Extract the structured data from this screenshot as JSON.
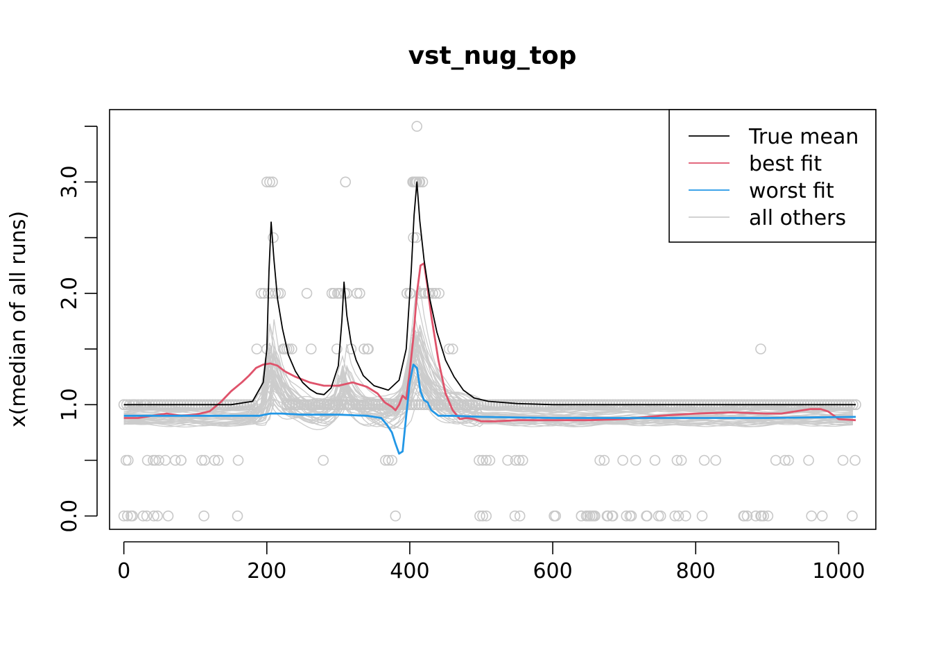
{
  "chart_data": {
    "type": "line",
    "title": "vst_nug_top",
    "xlabel": "",
    "ylabel": "x(median of all runs)",
    "xlim": [
      -20,
      1052
    ],
    "ylim": [
      -0.12,
      3.65
    ],
    "x_ticks": [
      0,
      200,
      400,
      600,
      800,
      1000
    ],
    "x_tick_labels": [
      "0",
      "200",
      "400",
      "600",
      "800",
      "1000"
    ],
    "y_ticks": [
      0,
      0.5,
      1,
      1.5,
      2,
      2.5,
      3,
      3.5
    ],
    "y_tick_labels": [
      "0.0",
      "",
      "1.0",
      "",
      "2.0",
      "",
      "3.0",
      ""
    ],
    "legend": {
      "position": "top-right",
      "entries": [
        {
          "label": "True mean",
          "color": "#000000"
        },
        {
          "label": "best fit",
          "color": "#DF536B"
        },
        {
          "label": "worst fit",
          "color": "#2297E6"
        },
        {
          "label": "all others",
          "color": "#CCCCCC"
        }
      ]
    },
    "colors": {
      "true_mean": "#000000",
      "best_fit": "#DF536B",
      "worst_fit": "#2297E6",
      "others": "#CCCCCC",
      "points": "#C8C8C8"
    },
    "series": [
      {
        "name": "True mean",
        "x": [
          0,
          150,
          180,
          195,
          200,
          203,
          206,
          210,
          215,
          222,
          230,
          240,
          250,
          260,
          270,
          280,
          290,
          300,
          305,
          308,
          312,
          318,
          325,
          335,
          350,
          370,
          385,
          395,
          402,
          406,
          410,
          414,
          420,
          428,
          438,
          450,
          462,
          475,
          490,
          510,
          550,
          600,
          700,
          800,
          1024
        ],
        "y": [
          1.0,
          1.0,
          1.03,
          1.2,
          1.5,
          2.2,
          2.64,
          2.3,
          1.95,
          1.68,
          1.45,
          1.3,
          1.2,
          1.14,
          1.1,
          1.09,
          1.15,
          1.35,
          1.75,
          2.1,
          1.8,
          1.55,
          1.4,
          1.26,
          1.17,
          1.13,
          1.22,
          1.5,
          2.2,
          2.7,
          3.0,
          2.65,
          2.3,
          1.95,
          1.65,
          1.4,
          1.25,
          1.13,
          1.06,
          1.03,
          1.01,
          1.0,
          1.0,
          1.0,
          1.0
        ]
      },
      {
        "name": "best fit",
        "x": [
          0,
          20,
          40,
          60,
          80,
          100,
          120,
          135,
          150,
          165,
          175,
          185,
          195,
          205,
          215,
          225,
          240,
          260,
          280,
          300,
          320,
          340,
          355,
          365,
          375,
          380,
          385,
          390,
          395,
          400,
          405,
          410,
          415,
          420,
          425,
          430,
          440,
          450,
          460,
          470,
          480,
          490,
          500,
          520,
          550,
          600,
          650,
          700,
          750,
          800,
          850,
          900,
          920,
          940,
          960,
          975,
          985,
          1000,
          1024
        ],
        "y": [
          0.88,
          0.88,
          0.9,
          0.92,
          0.9,
          0.91,
          0.94,
          1.02,
          1.12,
          1.2,
          1.26,
          1.33,
          1.36,
          1.37,
          1.35,
          1.3,
          1.25,
          1.2,
          1.17,
          1.17,
          1.2,
          1.16,
          1.1,
          1.02,
          0.98,
          0.95,
          1.0,
          1.08,
          1.05,
          1.3,
          1.6,
          2.0,
          2.25,
          2.27,
          2.05,
          1.8,
          1.4,
          1.1,
          0.95,
          0.87,
          0.88,
          0.87,
          0.85,
          0.85,
          0.86,
          0.86,
          0.86,
          0.87,
          0.9,
          0.92,
          0.93,
          0.92,
          0.92,
          0.94,
          0.96,
          0.96,
          0.94,
          0.87,
          0.86
        ]
      },
      {
        "name": "worst fit",
        "x": [
          0,
          50,
          100,
          150,
          190,
          205,
          220,
          250,
          300,
          340,
          360,
          368,
          375,
          380,
          385,
          390,
          395,
          400,
          405,
          410,
          415,
          420,
          425,
          430,
          440,
          460,
          500,
          600,
          700,
          800,
          900,
          1024
        ],
        "y": [
          0.9,
          0.9,
          0.9,
          0.9,
          0.9,
          0.92,
          0.92,
          0.91,
          0.91,
          0.9,
          0.88,
          0.82,
          0.75,
          0.65,
          0.56,
          0.58,
          0.9,
          1.2,
          1.36,
          1.33,
          1.12,
          1.04,
          1.02,
          0.95,
          0.9,
          0.9,
          0.89,
          0.88,
          0.88,
          0.88,
          0.88,
          0.89
        ]
      }
    ],
    "points": {
      "note": "per-run raw values (circles)",
      "x": [
        0,
        3,
        6,
        14,
        30,
        33,
        41,
        44,
        49,
        58,
        72,
        80,
        109,
        113,
        127,
        132,
        160,
        200,
        204,
        208,
        209,
        216,
        225,
        256,
        262,
        279,
        291,
        298,
        310,
        330,
        341,
        366,
        375,
        380,
        396,
        400,
        404,
        408,
        410,
        414,
        418,
        422,
        426,
        460,
        497,
        502,
        507,
        512,
        537,
        548,
        553,
        558,
        602,
        640,
        649,
        652,
        655,
        659,
        666,
        672,
        676,
        684,
        698,
        708,
        716,
        732,
        743,
        751,
        774,
        780,
        812,
        828,
        867,
        892,
        912,
        925,
        930,
        958,
        1006,
        1023,
        0,
        5,
        10,
        12,
        27,
        32,
        42,
        47,
        62,
        80,
        112,
        159,
        186,
        192,
        196,
        200,
        202,
        206,
        212,
        219,
        223,
        228,
        231,
        235,
        280,
        294,
        299,
        303,
        309,
        318,
        326,
        330,
        336,
        342,
        370,
        390,
        396,
        401,
        405,
        409,
        415,
        420,
        428,
        432,
        436,
        441,
        455,
        480,
        498,
        502,
        507,
        547,
        554,
        604,
        640,
        647,
        652,
        657,
        677,
        683,
        703,
        710,
        731,
        748,
        771,
        776,
        786,
        809,
        868,
        872,
        884,
        891,
        895,
        901,
        962,
        977,
        1019,
        301,
        312,
        405,
        410,
        413,
        407,
        409,
        891
      ],
      "y": [
        1,
        0.5,
        0.5,
        1,
        1,
        0.5,
        0.5,
        0.5,
        0.5,
        0.5,
        0.5,
        0.5,
        0.5,
        0.5,
        0.5,
        0.5,
        0.5,
        3,
        3,
        3,
        2.5,
        2,
        1.5,
        2,
        1.5,
        0.5,
        2,
        1.5,
        3,
        2,
        1.5,
        0.5,
        0.5,
        0,
        2,
        2,
        3,
        3,
        3,
        3,
        3,
        2,
        2,
        1.5,
        0.5,
        0.5,
        0.5,
        0.5,
        0.5,
        0.5,
        0.5,
        0.5,
        0,
        0,
        0,
        0,
        0,
        0,
        0.5,
        0.5,
        0,
        0,
        0.5,
        0,
        0.5,
        0,
        0.5,
        0,
        0.5,
        0.5,
        0.5,
        0.5,
        0,
        0,
        0.5,
        0.5,
        0.5,
        0.5,
        0.5,
        0.5,
        0,
        0,
        0,
        0,
        0,
        0,
        0,
        0,
        0,
        0.5,
        0,
        0,
        1.5,
        2,
        2,
        1.5,
        2,
        2,
        2,
        2,
        1.5,
        1.5,
        1.5,
        1.5,
        1,
        2,
        2,
        2,
        2,
        1.5,
        2,
        2,
        1.5,
        1.5,
        0.5,
        1,
        2,
        2,
        3,
        2.5,
        2,
        2,
        2,
        2,
        2,
        2,
        1.5,
        1,
        0,
        0,
        0,
        0,
        0,
        0,
        0,
        0,
        0,
        0,
        0,
        0,
        0,
        0,
        0,
        0,
        0,
        0,
        0,
        0,
        0,
        0,
        0,
        0,
        0,
        0,
        0,
        0,
        0,
        2,
        2,
        2.5,
        3.5,
        3,
        3,
        3,
        1.5
      ]
    }
  }
}
